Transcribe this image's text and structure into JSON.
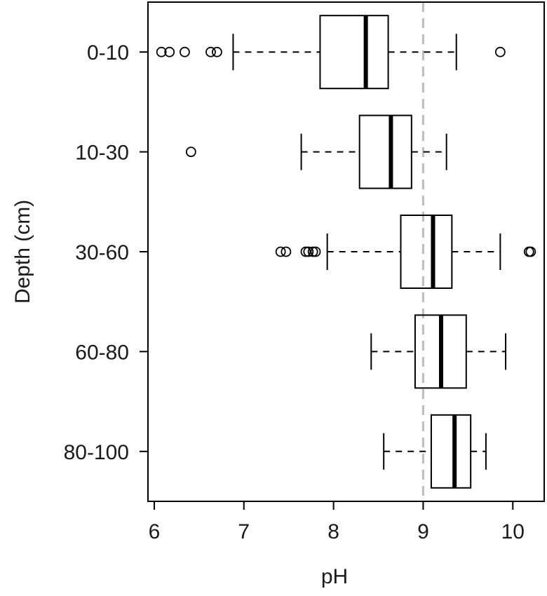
{
  "chart_data": {
    "type": "boxplot",
    "orientation": "horizontal",
    "xlabel": "pH",
    "ylabel": "Depth (cm)",
    "xlim": [
      5.93,
      10.35
    ],
    "xticks": [
      "6",
      "7",
      "8",
      "9",
      "10"
    ],
    "xtick_values": [
      6,
      7,
      8,
      9,
      10
    ],
    "reference_line": {
      "x": 9,
      "style": "dashed",
      "color": "#bdbdbd"
    },
    "grid": false,
    "legend": "none",
    "categories": [
      "0-10",
      "10-30",
      "30-60",
      "60-80",
      "80-100"
    ],
    "boxes": [
      {
        "category": "0-10",
        "whisker_low": 6.88,
        "q1": 7.85,
        "median": 8.36,
        "q3": 8.61,
        "whisker_high": 9.37,
        "outliers": [
          6.08,
          6.17,
          6.34,
          6.63,
          6.7,
          9.86
        ]
      },
      {
        "category": "10-30",
        "whisker_low": 7.64,
        "q1": 8.29,
        "median": 8.64,
        "q3": 8.87,
        "whisker_high": 9.26,
        "outliers": [
          6.41
        ]
      },
      {
        "category": "30-60",
        "whisker_low": 7.93,
        "q1": 8.75,
        "median": 9.11,
        "q3": 9.32,
        "whisker_high": 9.86,
        "outliers": [
          7.41,
          7.47,
          7.69,
          7.72,
          7.77,
          7.8,
          10.18,
          10.2
        ]
      },
      {
        "category": "60-80",
        "whisker_low": 8.42,
        "q1": 8.91,
        "median": 9.2,
        "q3": 9.48,
        "whisker_high": 9.92,
        "outliers": []
      },
      {
        "category": "80-100",
        "whisker_low": 8.56,
        "q1": 9.09,
        "median": 9.35,
        "q3": 9.53,
        "whisker_high": 9.7,
        "outliers": []
      }
    ]
  }
}
